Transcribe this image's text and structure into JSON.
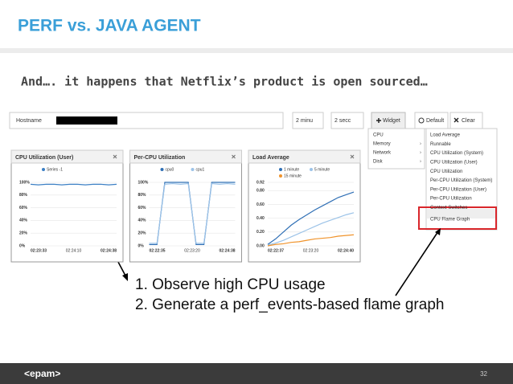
{
  "header": {
    "title": "PERF vs. JAVA AGENT",
    "subtitle": "And…. it happens that Netflix’s product is open sourced…"
  },
  "toolbar": {
    "hostname": "Hostname",
    "range": "2 minu",
    "interval": "2 secc",
    "widget": "Widget",
    "default": "Default",
    "clear": "Clear"
  },
  "menu": {
    "items": [
      "CPU",
      "Memory",
      "Network",
      "Disk"
    ],
    "submenu": [
      "Load Average",
      "Runnable",
      "CPU Utilization (System)",
      "CPU Utilization (User)",
      "CPU Utilization",
      "Per-CPU Utilization (System)",
      "Per-CPU Utilization (User)",
      "Per-CPU Utilization",
      "Context Switches",
      "CPU Flame Graph"
    ]
  },
  "widgets": [
    {
      "title": "CPU Utilization (User)",
      "ylim": [
        0,
        100
      ],
      "yticks": [
        {
          "value": 0,
          "label": "0%"
        },
        {
          "value": 20,
          "label": "20%"
        },
        {
          "value": 40,
          "label": "40%"
        },
        {
          "value": 60,
          "label": "60%"
        },
        {
          "value": 80,
          "label": "80%"
        },
        {
          "value": 100,
          "label": "100%"
        }
      ],
      "xlabels": [
        "02:23:33",
        "02:24:10",
        "02:24:38"
      ],
      "series": [
        {
          "name": "Series -1",
          "color": "#3b7fc4",
          "values": [
            97,
            96,
            97,
            97,
            96,
            97,
            97,
            96,
            97,
            97,
            96,
            97
          ]
        }
      ]
    },
    {
      "title": "Per-CPU Utilization",
      "ylim": [
        0,
        100
      ],
      "yticks": [
        {
          "value": 0,
          "label": "0%"
        },
        {
          "value": 20,
          "label": "20%"
        },
        {
          "value": 40,
          "label": "40%"
        },
        {
          "value": 60,
          "label": "60%"
        },
        {
          "value": 80,
          "label": "80%"
        },
        {
          "value": 100,
          "label": "100%"
        }
      ],
      "xlabels": [
        "02:22:35",
        "02:23:20",
        "02:24:38"
      ],
      "series": [
        {
          "name": "cpu0",
          "color": "#2f6fb5",
          "values": [
            2,
            2,
            100,
            100,
            100,
            100,
            2,
            2,
            100,
            100,
            100,
            100
          ]
        },
        {
          "name": "cpu1",
          "color": "#9cc3e8",
          "values": [
            4,
            4,
            97,
            98,
            97,
            98,
            4,
            4,
            98,
            97,
            98,
            97
          ]
        }
      ]
    },
    {
      "title": "Load Average",
      "ylim": [
        0,
        0.92
      ],
      "yticks": [
        {
          "value": 0,
          "label": "0.00"
        },
        {
          "value": 0.2,
          "label": "0.20"
        },
        {
          "value": 0.4,
          "label": "0.40"
        },
        {
          "value": 0.6,
          "label": "0.60"
        },
        {
          "value": 0.8,
          "label": "0.80"
        },
        0.92
      ],
      "xlabels": [
        "02:22:37",
        "02:23:20",
        "02:24:40"
      ],
      "series": [
        {
          "name": "1 minute",
          "color": "#2f6fb5",
          "values": [
            0.02,
            0.1,
            0.2,
            0.3,
            0.38,
            0.45,
            0.52,
            0.58,
            0.64,
            0.7,
            0.74,
            0.78
          ]
        },
        {
          "name": "5 minute",
          "color": "#9cc3e8",
          "values": [
            0.01,
            0.04,
            0.08,
            0.13,
            0.18,
            0.23,
            0.28,
            0.33,
            0.37,
            0.41,
            0.45,
            0.48
          ]
        },
        {
          "name": "15 minute",
          "color": "#f0932b",
          "values": [
            0,
            0.02,
            0.03,
            0.05,
            0.06,
            0.08,
            0.1,
            0.11,
            0.12,
            0.14,
            0.15,
            0.16
          ]
        }
      ]
    }
  ],
  "steps": [
    "1. Observe high CPU usage",
    "2. Generate a perf_events-based flame graph"
  ],
  "footer": {
    "logo": "<epam>",
    "page": "32"
  }
}
